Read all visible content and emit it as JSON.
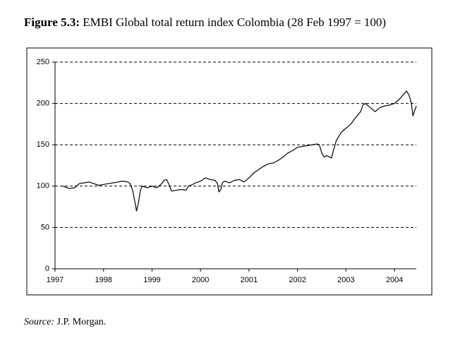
{
  "chart_data": {
    "type": "line",
    "title_label": "Figure 5.3:",
    "title": "EMBI Global total return index Colombia (28 Feb 1997 = 100)",
    "source_label": "Source:",
    "source": "J.P. Morgan.",
    "x": [
      1997.16,
      1997.3,
      1997.4,
      1997.5,
      1997.6,
      1997.7,
      1997.8,
      1997.9,
      1998.0,
      1998.1,
      1998.2,
      1998.3,
      1998.4,
      1998.5,
      1998.55,
      1998.6,
      1998.65,
      1998.68,
      1998.72,
      1998.76,
      1998.8,
      1998.9,
      1999.0,
      1999.1,
      1999.2,
      1999.25,
      1999.3,
      1999.35,
      1999.4,
      1999.5,
      1999.6,
      1999.7,
      1999.75,
      1999.8,
      1999.9,
      2000.0,
      2000.1,
      2000.2,
      2000.3,
      2000.35,
      2000.38,
      2000.42,
      2000.45,
      2000.5,
      2000.6,
      2000.7,
      2000.8,
      2000.9,
      2001.0,
      2001.1,
      2001.2,
      2001.3,
      2001.4,
      2001.5,
      2001.6,
      2001.7,
      2001.8,
      2001.9,
      2002.0,
      2002.1,
      2002.2,
      2002.3,
      2002.4,
      2002.45,
      2002.5,
      2002.55,
      2002.6,
      2002.7,
      2002.75,
      2002.8,
      2002.9,
      2003.0,
      2003.1,
      2003.2,
      2003.3,
      2003.35,
      2003.4,
      2003.5,
      2003.6,
      2003.7,
      2003.8,
      2003.9,
      2004.0,
      2004.1,
      2004.2,
      2004.25,
      2004.3,
      2004.35,
      2004.38,
      2004.42,
      2004.45
    ],
    "values": [
      100,
      97,
      98,
      103,
      104,
      105,
      103,
      101,
      102,
      103,
      104,
      105,
      106,
      105,
      103,
      95,
      80,
      70,
      80,
      95,
      100,
      98,
      100,
      98,
      103,
      107,
      108,
      102,
      94,
      95,
      96,
      95,
      100,
      101,
      104,
      106,
      110,
      108,
      107,
      103,
      93,
      96,
      104,
      106,
      104,
      107,
      108,
      105,
      110,
      116,
      120,
      124,
      127,
      128,
      131,
      135,
      140,
      143,
      147,
      148,
      149,
      150,
      151,
      150,
      140,
      135,
      137,
      134,
      145,
      155,
      165,
      170,
      175,
      183,
      190,
      198,
      200,
      195,
      190,
      195,
      197,
      198,
      200,
      205,
      212,
      215,
      210,
      200,
      185,
      192,
      197
    ],
    "color": "#000000",
    "xlim": [
      1997,
      2004.45
    ],
    "xticks": [
      1997,
      1998,
      1999,
      2000,
      2001,
      2002,
      2003,
      2004
    ],
    "ylim": [
      0,
      250
    ],
    "yticks": [
      0,
      50,
      100,
      150,
      200,
      250
    ],
    "grid": true
  }
}
